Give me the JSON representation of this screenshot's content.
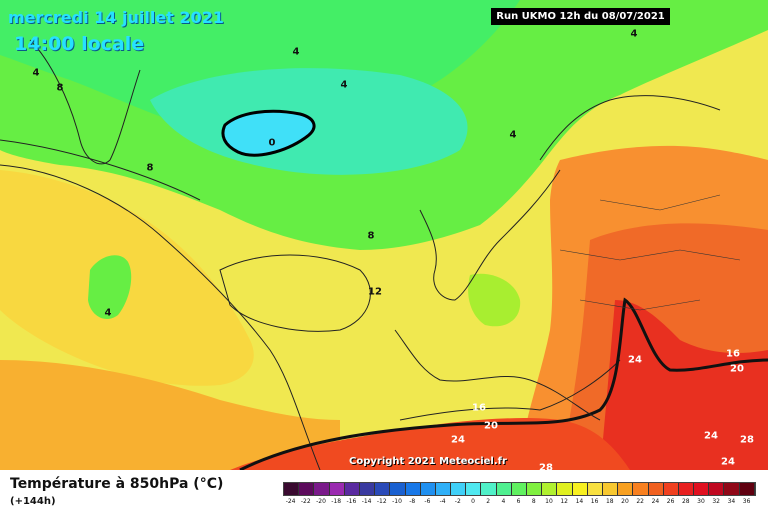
{
  "header": {
    "date_line": "mercredi 14 juillet 2021",
    "time_line": "14:00 locale",
    "run_label": "Run UKMO 12h du 08/07/2021"
  },
  "map": {
    "copyright": "Copyright 2021 Meteociel.fr",
    "contour_labels": [
      {
        "text": "4",
        "tone": "dark"
      },
      {
        "text": "4",
        "tone": "dark"
      },
      {
        "text": "4",
        "tone": "dark"
      },
      {
        "text": "4",
        "tone": "dark"
      },
      {
        "text": "4",
        "tone": "dark"
      },
      {
        "text": "4",
        "tone": "dark"
      },
      {
        "text": "0",
        "tone": "dark"
      },
      {
        "text": "8",
        "tone": "dark"
      },
      {
        "text": "8",
        "tone": "dark"
      },
      {
        "text": "8",
        "tone": "dark"
      },
      {
        "text": "12",
        "tone": "dark"
      },
      {
        "text": "16",
        "tone": "light"
      },
      {
        "text": "16",
        "tone": "light"
      },
      {
        "text": "20",
        "tone": "light"
      },
      {
        "text": "20",
        "tone": "light"
      },
      {
        "text": "24",
        "tone": "light"
      },
      {
        "text": "24",
        "tone": "light"
      },
      {
        "text": "24",
        "tone": "light"
      },
      {
        "text": "24",
        "tone": "light"
      },
      {
        "text": "28",
        "tone": "light"
      },
      {
        "text": "28",
        "tone": "light"
      }
    ]
  },
  "legend": {
    "title": "Température à 850hPa (°C)",
    "subtitle": "(+144h)",
    "ticks": [
      "-24",
      "-22",
      "-20",
      "-18",
      "-16",
      "-14",
      "-12",
      "-10",
      "-8",
      "-6",
      "-4",
      "-2",
      "0",
      "2",
      "4",
      "6",
      "8",
      "10",
      "12",
      "14",
      "16",
      "18",
      "20",
      "22",
      "24",
      "26",
      "28",
      "30",
      "32",
      "34",
      "36"
    ],
    "colors": [
      "#3a0a30",
      "#5c0a5c",
      "#7a1a8a",
      "#9a2ab0",
      "#5a2aa0",
      "#3a3aa0",
      "#2a4ab8",
      "#1a60d0",
      "#1878e8",
      "#2090f0",
      "#30b0f8",
      "#40d0f8",
      "#50e8f0",
      "#50f0c8",
      "#50f090",
      "#60f060",
      "#80f040",
      "#b0f030",
      "#e0f020",
      "#f8f020",
      "#f8e040",
      "#f8c830",
      "#f8a020",
      "#f88020",
      "#f06020",
      "#f04020",
      "#e82020",
      "#e01020",
      "#c00820",
      "#900818",
      "#600010"
    ]
  }
}
